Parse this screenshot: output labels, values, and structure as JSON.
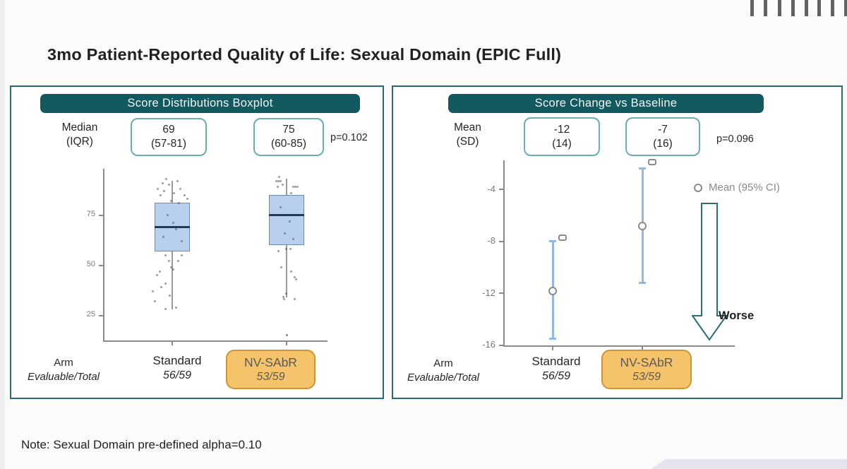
{
  "slide": {
    "title": "3mo Patient-Reported Quality of Life: Sexual Domain (EPIC Full)",
    "note": "Note: Sexual Domain pre-defined alpha=0.10"
  },
  "colors": {
    "header_bg": "#135a60",
    "panel_border": "#2a6b70",
    "stat_box_border": "#6aacb4",
    "accent_orange_bg": "#f5c36a",
    "accent_orange_border": "#cf9434",
    "box_fill": "#b8cfee",
    "box_stroke": "#6e89ab",
    "median_line": "#22395c",
    "whisker": "#9a9a9a",
    "point": "#4d4d4d",
    "ci_bar": "#8fb8e8",
    "marker_outline": "#8a8a8a",
    "axis": "#8a8a8a",
    "tick_label": "#7a7a7a",
    "arrow_outline": "#2e6e72",
    "legend_text": "#8a8a8a"
  },
  "left_panel": {
    "header": "Score Distributions Boxplot",
    "stat_label": {
      "line1": "Median",
      "line2": "(IQR)"
    },
    "stat_boxes": [
      {
        "line1": "69",
        "line2": "(57-81)"
      },
      {
        "line1": "75",
        "line2": "(60-85)"
      }
    ],
    "p_value": "p=0.102",
    "arm_label": "Arm",
    "evaluable_label": "Evaluable/Total",
    "arms": [
      {
        "name": "Standard",
        "ratio": "56/59"
      },
      {
        "name": "NV-SAbR",
        "ratio": "53/59"
      }
    ]
  },
  "right_panel": {
    "header": "Score Change vs Baseline",
    "stat_label": {
      "line1": "Mean",
      "line2": "(SD)"
    },
    "stat_boxes": [
      {
        "line1": "-12",
        "line2": "(14)"
      },
      {
        "line1": "-7",
        "line2": "(16)"
      }
    ],
    "p_value": "p=0.096",
    "legend_label": "Mean (95% CI)",
    "worse_label": "Worse",
    "arm_label": "Arm",
    "evaluable_label": "Evaluable/Total",
    "arms": [
      {
        "name": "Standard",
        "ratio": "56/59"
      },
      {
        "name": "NV-SAbR",
        "ratio": "53/59"
      }
    ]
  },
  "chart_data": [
    {
      "id": "boxplot",
      "type": "boxplot",
      "title": "Score Distributions Boxplot",
      "categories": [
        "Standard",
        "NV-SAbR"
      ],
      "yticks": [
        25,
        50,
        75
      ],
      "ylim": [
        12,
        98
      ],
      "grid": false,
      "series": [
        {
          "name": "Standard",
          "median": 69,
          "q1": 57,
          "q3": 81,
          "whisker_low": 28,
          "whisker_high": 92,
          "outliers": [],
          "points": [
            [
              -20,
              88
            ],
            [
              -13,
              91
            ],
            [
              -16,
              85
            ],
            [
              -8,
              93
            ],
            [
              -11,
              87
            ],
            [
              -4,
              90
            ],
            [
              3,
              86
            ],
            [
              8,
              92
            ],
            [
              12,
              88
            ],
            [
              18,
              85
            ],
            [
              22,
              83
            ],
            [
              -1,
              82
            ],
            [
              10,
              81
            ],
            [
              -9,
              55
            ],
            [
              -4,
              52
            ],
            [
              -17,
              47
            ],
            [
              -1,
              49
            ],
            [
              -21,
              45
            ],
            [
              -9,
              41
            ],
            [
              -15,
              39
            ],
            [
              -27,
              37
            ],
            [
              -24,
              32
            ],
            [
              -3,
              35
            ],
            [
              -9,
              28
            ],
            [
              6,
              29
            ],
            [
              2,
              48
            ],
            [
              9,
              52
            ],
            [
              14,
              55
            ],
            [
              -6,
              75
            ],
            [
              6,
              68
            ],
            [
              14,
              62
            ],
            [
              -12,
              64
            ],
            [
              2,
              71
            ]
          ]
        },
        {
          "name": "NV-SAbR",
          "median": 75,
          "q1": 60,
          "q3": 85,
          "whisker_low": 34,
          "whisker_high": 93,
          "outliers": [
            [
              1,
              15
            ]
          ],
          "points": [
            [
              -10,
              94
            ],
            [
              -14,
              92
            ],
            [
              -11,
              92
            ],
            [
              -8,
              92
            ],
            [
              -12,
              89
            ],
            [
              -5,
              90
            ],
            [
              10,
              89
            ],
            [
              13,
              89
            ],
            [
              16,
              89
            ],
            [
              7,
              86
            ],
            [
              -11,
              57
            ],
            [
              0,
              58
            ],
            [
              6,
              58
            ],
            [
              -7,
              49
            ],
            [
              7,
              47
            ],
            [
              12,
              44
            ],
            [
              14,
              43
            ],
            [
              0,
              36
            ],
            [
              -4,
              34
            ],
            [
              -3,
              33
            ],
            [
              12,
              33
            ],
            [
              -8,
              79
            ],
            [
              5,
              72
            ],
            [
              -2,
              66
            ],
            [
              10,
              63
            ]
          ]
        }
      ]
    },
    {
      "id": "ci",
      "type": "scatter-ci",
      "title": "Score Change vs Baseline",
      "categories": [
        "Standard",
        "NV-SAbR"
      ],
      "yticks": [
        -4,
        -8,
        -12,
        -16
      ],
      "ylim": [
        -16.5,
        -1.8
      ],
      "grid": false,
      "legend": "Mean (95% CI)",
      "legend_position": "right",
      "annotation": "Worse",
      "series": [
        {
          "name": "Standard",
          "mean": -11.8,
          "ci_high": -8.0,
          "ci_low": -15.5,
          "square": -7.7
        },
        {
          "name": "NV-SAbR",
          "mean": -6.8,
          "ci_high": -2.4,
          "ci_low": -11.2,
          "square": -1.9
        }
      ]
    }
  ]
}
